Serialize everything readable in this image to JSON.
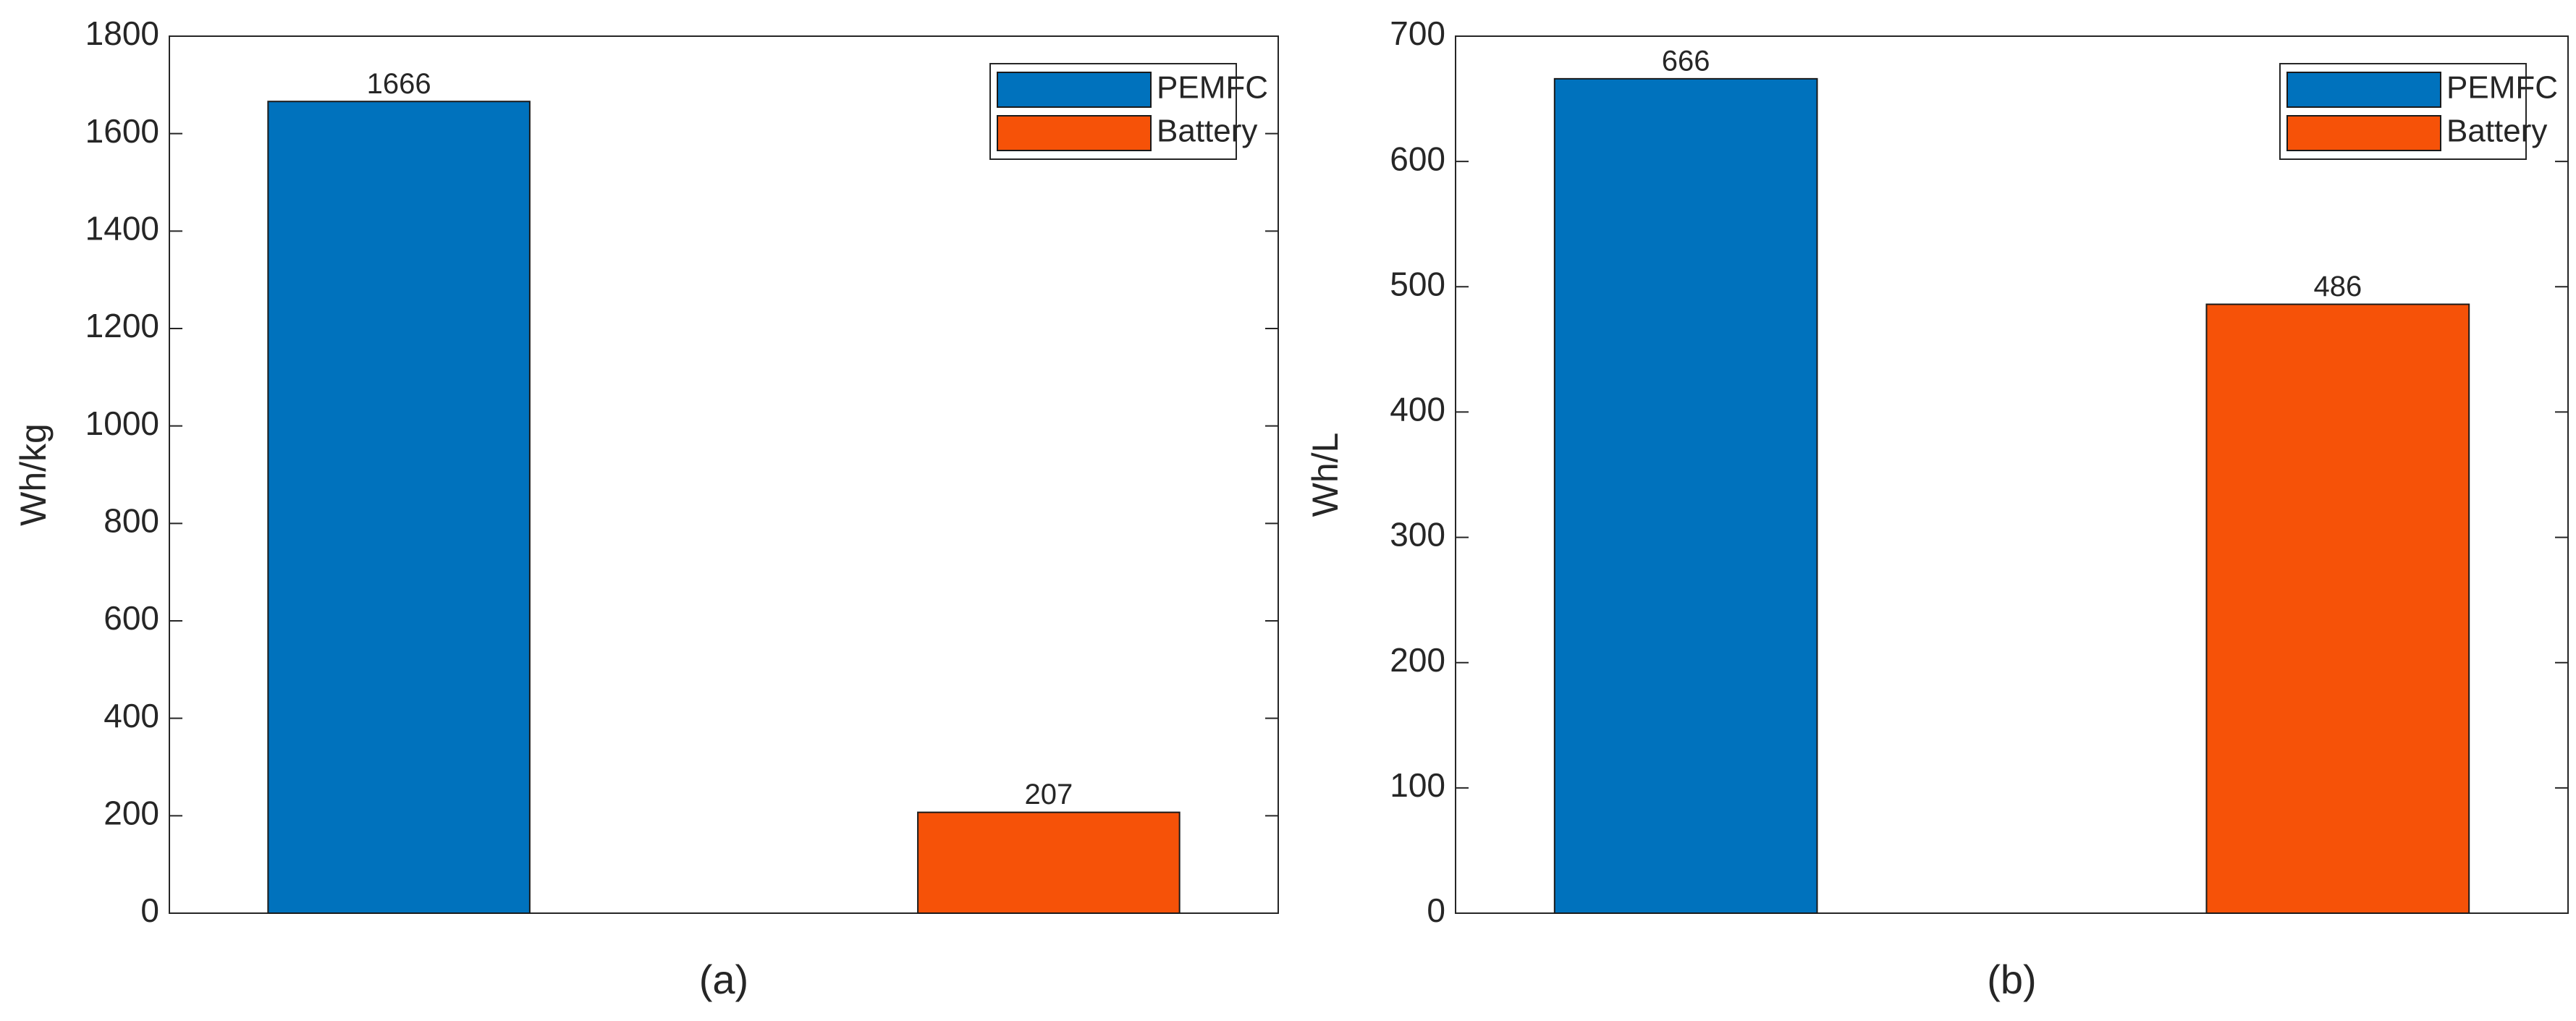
{
  "chart_data": [
    {
      "type": "bar",
      "title": "(a)",
      "ylabel": "Wh/kg",
      "categories": [
        null
      ],
      "series": [
        {
          "name": "PEMFC",
          "color": "#0072bd",
          "values": [
            1666
          ]
        },
        {
          "name": "Battery",
          "color": "#f65208",
          "values": [
            207
          ]
        }
      ],
      "ylim": [
        0,
        1800
      ],
      "yticks": [
        0,
        200,
        400,
        600,
        800,
        1000,
        1200,
        1400,
        1600,
        1800
      ],
      "grid": false,
      "legend": "upper right"
    },
    {
      "type": "bar",
      "title": "(b)",
      "ylabel": "Wh/L",
      "categories": [
        null
      ],
      "series": [
        {
          "name": "PEMFC",
          "color": "#0072bd",
          "values": [
            666
          ]
        },
        {
          "name": "Battery",
          "color": "#f65208",
          "values": [
            486
          ]
        }
      ],
      "ylim": [
        0,
        700
      ],
      "yticks": [
        0,
        100,
        200,
        300,
        400,
        500,
        600,
        700
      ],
      "grid": false,
      "legend": "upper right"
    }
  ]
}
